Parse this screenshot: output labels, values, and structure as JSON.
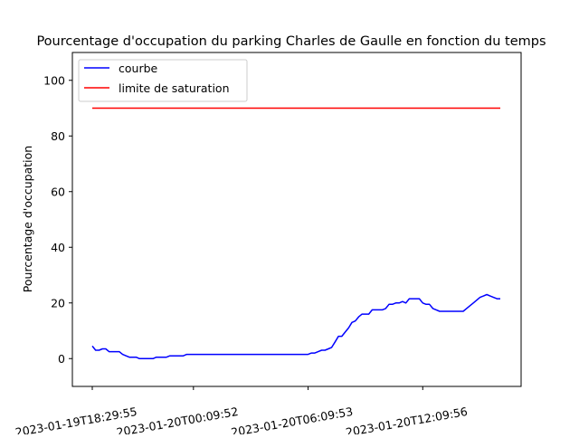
{
  "chart_data": {
    "type": "line",
    "title": "Pourcentage d'occupation du parking Charles de Gaulle en fonction du temps",
    "xlabel": "",
    "ylabel": "Pourcentage d'occupation",
    "ylim": [
      -10,
      110
    ],
    "yticks": [
      0,
      20,
      40,
      60,
      80,
      100
    ],
    "x_tick_labels": [
      {
        "index": 0,
        "label": "2023-01-19T18:29:55"
      },
      {
        "index": 30,
        "label": "2023-01-20T00:09:52"
      },
      {
        "index": 64,
        "label": "2023-01-20T06:09:53"
      },
      {
        "index": 98,
        "label": "2023-01-20T12:09:56"
      }
    ],
    "x_count": 122,
    "grid": false,
    "legend": {
      "position": "top-left",
      "entries": [
        "courbe",
        "limite de saturation"
      ]
    },
    "series": [
      {
        "name": "courbe",
        "color": "#0000ff",
        "values": [
          4.5,
          3,
          3,
          3.5,
          3.5,
          2.5,
          2.5,
          2.5,
          2.5,
          1.5,
          1,
          0.5,
          0.5,
          0.5,
          0,
          0,
          0,
          0,
          0,
          0.5,
          0.5,
          0.5,
          0.5,
          1,
          1,
          1,
          1,
          1,
          1.5,
          1.5,
          1.5,
          1.5,
          1.5,
          1.5,
          1.5,
          1.5,
          1.5,
          1.5,
          1.5,
          1.5,
          1.5,
          1.5,
          1.5,
          1.5,
          1.5,
          1.5,
          1.5,
          1.5,
          1.5,
          1.5,
          1.5,
          1.5,
          1.5,
          1.5,
          1.5,
          1.5,
          1.5,
          1.5,
          1.5,
          1.5,
          1.5,
          1.5,
          1.5,
          1.5,
          1.5,
          2,
          2,
          2.5,
          3,
          3,
          3.5,
          4,
          6,
          8,
          8,
          9.5,
          11,
          13,
          13.5,
          15,
          16,
          16,
          16,
          17.5,
          17.5,
          17.5,
          17.5,
          18,
          19.5,
          19.5,
          20,
          20,
          20.5,
          20,
          21.5,
          21.5,
          21.5,
          21.5,
          20,
          19.5,
          19.5,
          18,
          17.5,
          17,
          17,
          17,
          17,
          17,
          17,
          17,
          17,
          18,
          19,
          20,
          21,
          22,
          22.5,
          23,
          22.5,
          22,
          21.5,
          21.5
        ]
      },
      {
        "name": "limite de saturation",
        "color": "#ff0000",
        "values": [
          90,
          90
        ]
      }
    ]
  }
}
